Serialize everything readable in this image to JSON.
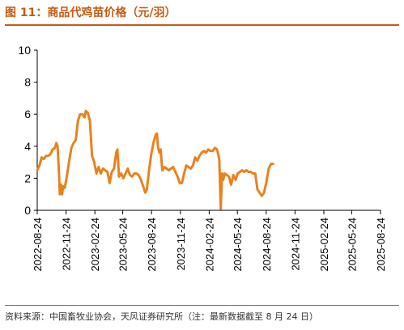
{
  "figure": {
    "title": "图 11：商品代鸡苗价格（元/羽）",
    "source": "资料来源：中国畜牧业协会，天风证券研究所（注：最新数据截至 8 月 24 日）",
    "accent_color": "#c55a11"
  },
  "chart_data": {
    "type": "line",
    "title": "",
    "xlabel": "",
    "ylabel": "",
    "ylim": [
      0,
      10
    ],
    "yticks": [
      "0",
      "2",
      "4",
      "6",
      "8",
      "10"
    ],
    "xticks": [
      "2022-08-24",
      "2022-11-24",
      "2023-02-24",
      "2023-05-24",
      "2023-08-24",
      "2023-11-24",
      "2024-02-24",
      "2024-05-24",
      "2024-08-24",
      "2024-11-24",
      "2025-02-24",
      "2025-05-24",
      "2025-08-24"
    ],
    "grid": false,
    "legend": "none",
    "series": [
      {
        "name": "",
        "color": "#e8821e",
        "points": [
          [
            "2022-08-24",
            2.5
          ],
          [
            "2022-08-31",
            2.8
          ],
          [
            "2022-09-07",
            3.3
          ],
          [
            "2022-09-14",
            3.2
          ],
          [
            "2022-09-21",
            3.4
          ],
          [
            "2022-09-28",
            3.4
          ],
          [
            "2022-10-05",
            3.5
          ],
          [
            "2022-10-12",
            3.8
          ],
          [
            "2022-10-19",
            3.9
          ],
          [
            "2022-10-24",
            4.2
          ],
          [
            "2022-10-28",
            4.0
          ],
          [
            "2022-11-01",
            2.5
          ],
          [
            "2022-11-04",
            1.0
          ],
          [
            "2022-11-08",
            1.6
          ],
          [
            "2022-11-11",
            1.0
          ],
          [
            "2022-11-15",
            1.5
          ],
          [
            "2022-11-20",
            1.4
          ],
          [
            "2022-11-27",
            2.2
          ],
          [
            "2022-12-04",
            3.1
          ],
          [
            "2022-12-11",
            3.9
          ],
          [
            "2022-12-18",
            4.2
          ],
          [
            "2022-12-25",
            4.4
          ],
          [
            "2023-01-01",
            5.6
          ],
          [
            "2023-01-08",
            6.0
          ],
          [
            "2023-01-15",
            6.0
          ],
          [
            "2023-01-22",
            5.8
          ],
          [
            "2023-01-26",
            6.2
          ],
          [
            "2023-02-01",
            6.1
          ],
          [
            "2023-02-08",
            5.6
          ],
          [
            "2023-02-15",
            3.4
          ],
          [
            "2023-02-22",
            3.0
          ],
          [
            "2023-03-01",
            2.3
          ],
          [
            "2023-03-08",
            2.7
          ],
          [
            "2023-03-15",
            2.3
          ],
          [
            "2023-03-22",
            2.6
          ],
          [
            "2023-03-29",
            2.5
          ],
          [
            "2023-04-05",
            2.4
          ],
          [
            "2023-04-12",
            1.7
          ],
          [
            "2023-04-19",
            2.4
          ],
          [
            "2023-04-26",
            2.6
          ],
          [
            "2023-05-03",
            3.6
          ],
          [
            "2023-05-07",
            3.8
          ],
          [
            "2023-05-12",
            2.1
          ],
          [
            "2023-05-19",
            2.3
          ],
          [
            "2023-05-26",
            2.0
          ],
          [
            "2023-06-02",
            2.3
          ],
          [
            "2023-06-09",
            2.6
          ],
          [
            "2023-06-16",
            2.2
          ],
          [
            "2023-06-23",
            2.1
          ],
          [
            "2023-06-30",
            2.3
          ],
          [
            "2023-07-07",
            2.3
          ],
          [
            "2023-07-14",
            2.2
          ],
          [
            "2023-07-21",
            1.9
          ],
          [
            "2023-07-28",
            1.5
          ],
          [
            "2023-08-04",
            1.1
          ],
          [
            "2023-08-09",
            1.3
          ],
          [
            "2023-08-16",
            2.5
          ],
          [
            "2023-08-23",
            3.5
          ],
          [
            "2023-08-30",
            4.2
          ],
          [
            "2023-09-06",
            4.7
          ],
          [
            "2023-09-10",
            4.8
          ],
          [
            "2023-09-14",
            3.9
          ],
          [
            "2023-09-18",
            3.6
          ],
          [
            "2023-09-22",
            3.8
          ],
          [
            "2023-09-27",
            2.5
          ],
          [
            "2023-10-04",
            2.7
          ],
          [
            "2023-10-11",
            2.6
          ],
          [
            "2023-10-18",
            2.5
          ],
          [
            "2023-10-25",
            2.6
          ],
          [
            "2023-11-01",
            2.7
          ],
          [
            "2023-11-08",
            2.4
          ],
          [
            "2023-11-15",
            2.1
          ],
          [
            "2023-11-22",
            1.7
          ],
          [
            "2023-11-29",
            1.7
          ],
          [
            "2023-12-06",
            2.3
          ],
          [
            "2023-12-13",
            2.8
          ],
          [
            "2023-12-20",
            2.7
          ],
          [
            "2023-12-27",
            2.6
          ],
          [
            "2024-01-03",
            2.8
          ],
          [
            "2024-01-10",
            3.3
          ],
          [
            "2024-01-17",
            3.1
          ],
          [
            "2024-01-24",
            3.4
          ],
          [
            "2024-01-31",
            3.6
          ],
          [
            "2024-02-07",
            3.7
          ],
          [
            "2024-02-14",
            3.6
          ],
          [
            "2024-02-21",
            3.8
          ],
          [
            "2024-02-28",
            3.7
          ],
          [
            "2024-03-06",
            3.7
          ],
          [
            "2024-03-13",
            3.9
          ],
          [
            "2024-03-20",
            3.8
          ],
          [
            "2024-03-27",
            3.2
          ],
          [
            "2024-04-01",
            0.1
          ],
          [
            "2024-04-05",
            2.3
          ],
          [
            "2024-04-09",
            1.9
          ],
          [
            "2024-04-13",
            2.3
          ],
          [
            "2024-04-20",
            2.2
          ],
          [
            "2024-04-27",
            2.1
          ],
          [
            "2024-05-04",
            1.6
          ],
          [
            "2024-05-11",
            2.2
          ],
          [
            "2024-05-18",
            1.9
          ],
          [
            "2024-05-25",
            2.3
          ],
          [
            "2024-06-01",
            2.4
          ],
          [
            "2024-06-08",
            2.5
          ],
          [
            "2024-06-15",
            2.4
          ],
          [
            "2024-06-22",
            2.5
          ],
          [
            "2024-06-29",
            2.4
          ],
          [
            "2024-07-06",
            2.4
          ],
          [
            "2024-07-13",
            2.3
          ],
          [
            "2024-07-20",
            2.3
          ],
          [
            "2024-07-27",
            1.3
          ],
          [
            "2024-08-03",
            1.1
          ],
          [
            "2024-08-10",
            0.9
          ],
          [
            "2024-08-17",
            1.1
          ],
          [
            "2024-08-24",
            1.7
          ],
          [
            "2024-09-01",
            2.6
          ],
          [
            "2024-09-08",
            2.9
          ],
          [
            "2024-09-15",
            2.9
          ]
        ]
      }
    ]
  }
}
